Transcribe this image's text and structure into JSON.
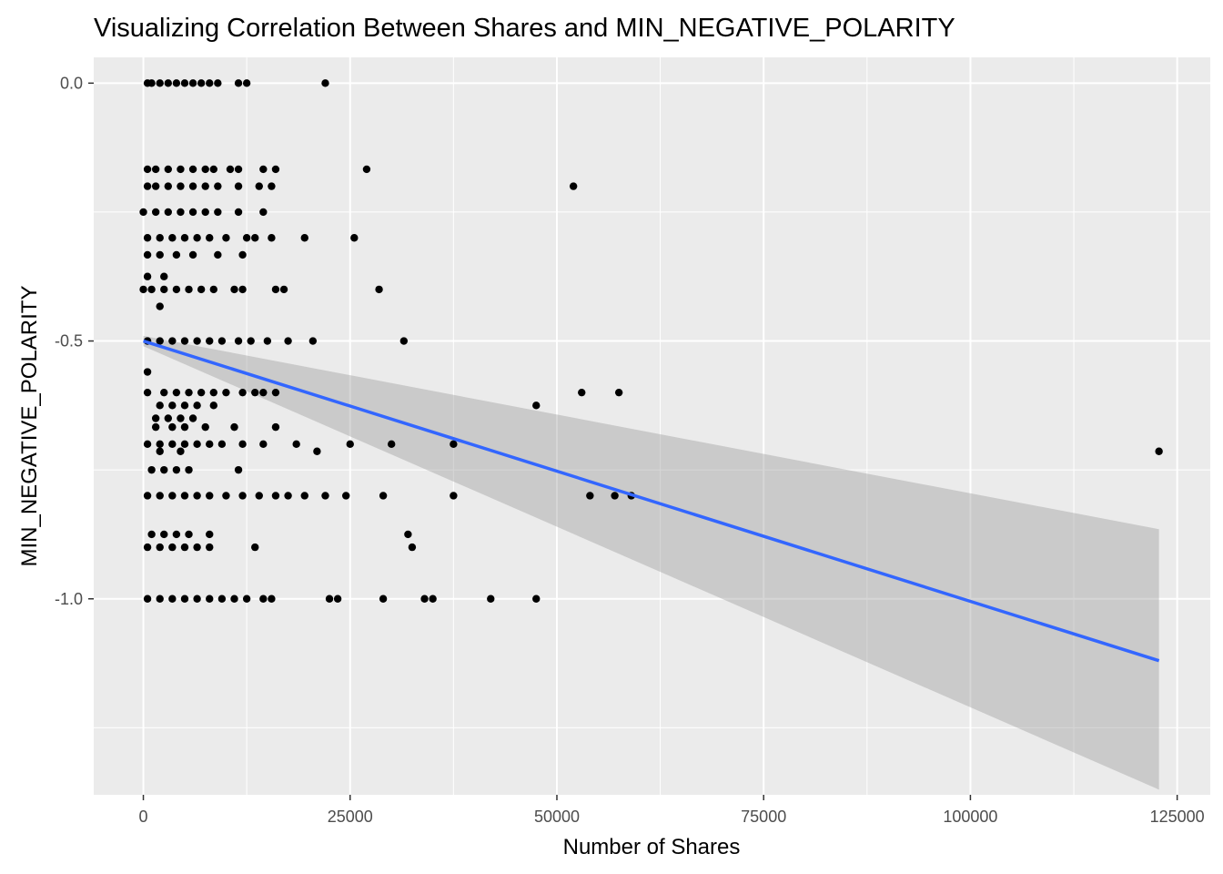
{
  "chart_data": {
    "type": "scatter",
    "title": "Visualizing Correlation Between Shares and MIN_NEGATIVE_POLARITY",
    "xlabel": "Number of Shares",
    "ylabel": "MIN_NEGATIVE_POLARITY",
    "xlim": [
      -6000,
      129000
    ],
    "ylim": [
      -1.38,
      0.05
    ],
    "xticks": [
      0,
      25000,
      50000,
      75000,
      100000,
      125000
    ],
    "xtick_labels": [
      "0",
      "25000",
      "50000",
      "75000",
      "100000",
      "125000"
    ],
    "yticks": [
      0.0,
      -0.5,
      -1.0
    ],
    "ytick_labels": [
      "0.0",
      "-0.5",
      "-1.0"
    ],
    "grid": true,
    "legend": "none",
    "colors": {
      "panel": "#ebebeb",
      "grid_major": "#ffffff",
      "points": "#000000",
      "fit_line": "#3366ff",
      "confidence_band": "#999999"
    },
    "regression": {
      "method": "lm",
      "x": [
        0,
        122800
      ],
      "y": [
        -0.5,
        -1.12
      ],
      "ci_upper": [
        -0.49,
        -0.865
      ],
      "ci_lower": [
        -0.51,
        -1.37
      ]
    },
    "points": [
      {
        "x": 22000,
        "y": 0.0
      },
      {
        "x": 12500,
        "y": 0.0
      },
      {
        "x": 11500,
        "y": 0.0
      },
      {
        "x": 9000,
        "y": 0.0
      },
      {
        "x": 8000,
        "y": 0.0
      },
      {
        "x": 7000,
        "y": 0.0
      },
      {
        "x": 6000,
        "y": 0.0
      },
      {
        "x": 5000,
        "y": 0.0
      },
      {
        "x": 4000,
        "y": 0.0
      },
      {
        "x": 3000,
        "y": 0.0
      },
      {
        "x": 2000,
        "y": 0.0
      },
      {
        "x": 1000,
        "y": 0.0
      },
      {
        "x": 500,
        "y": 0.0
      },
      {
        "x": 27000,
        "y": -0.167
      },
      {
        "x": 16000,
        "y": -0.167
      },
      {
        "x": 14500,
        "y": -0.167
      },
      {
        "x": 11500,
        "y": -0.167
      },
      {
        "x": 10500,
        "y": -0.167
      },
      {
        "x": 8500,
        "y": -0.167
      },
      {
        "x": 7500,
        "y": -0.167
      },
      {
        "x": 6000,
        "y": -0.167
      },
      {
        "x": 4500,
        "y": -0.167
      },
      {
        "x": 3000,
        "y": -0.167
      },
      {
        "x": 1500,
        "y": -0.167
      },
      {
        "x": 500,
        "y": -0.167
      },
      {
        "x": 52000,
        "y": -0.2
      },
      {
        "x": 15500,
        "y": -0.2
      },
      {
        "x": 14000,
        "y": -0.2
      },
      {
        "x": 11500,
        "y": -0.2
      },
      {
        "x": 9000,
        "y": -0.2
      },
      {
        "x": 7500,
        "y": -0.2
      },
      {
        "x": 6000,
        "y": -0.2
      },
      {
        "x": 4500,
        "y": -0.2
      },
      {
        "x": 3000,
        "y": -0.2
      },
      {
        "x": 1500,
        "y": -0.2
      },
      {
        "x": 500,
        "y": -0.2
      },
      {
        "x": 14500,
        "y": -0.25
      },
      {
        "x": 11500,
        "y": -0.25
      },
      {
        "x": 9000,
        "y": -0.25
      },
      {
        "x": 7500,
        "y": -0.25
      },
      {
        "x": 6000,
        "y": -0.25
      },
      {
        "x": 4500,
        "y": -0.25
      },
      {
        "x": 3000,
        "y": -0.25
      },
      {
        "x": 1500,
        "y": -0.25
      },
      {
        "x": 0,
        "y": -0.25
      },
      {
        "x": 25500,
        "y": -0.3
      },
      {
        "x": 19500,
        "y": -0.3
      },
      {
        "x": 15500,
        "y": -0.3
      },
      {
        "x": 13500,
        "y": -0.3
      },
      {
        "x": 12500,
        "y": -0.3
      },
      {
        "x": 10000,
        "y": -0.3
      },
      {
        "x": 8000,
        "y": -0.3
      },
      {
        "x": 6500,
        "y": -0.3
      },
      {
        "x": 5000,
        "y": -0.3
      },
      {
        "x": 3500,
        "y": -0.3
      },
      {
        "x": 2000,
        "y": -0.3
      },
      {
        "x": 500,
        "y": -0.3
      },
      {
        "x": 12000,
        "y": -0.333
      },
      {
        "x": 9000,
        "y": -0.333
      },
      {
        "x": 6000,
        "y": -0.333
      },
      {
        "x": 4000,
        "y": -0.333
      },
      {
        "x": 2000,
        "y": -0.333
      },
      {
        "x": 500,
        "y": -0.333
      },
      {
        "x": 2500,
        "y": -0.375
      },
      {
        "x": 500,
        "y": -0.375
      },
      {
        "x": 28500,
        "y": -0.4
      },
      {
        "x": 17000,
        "y": -0.4
      },
      {
        "x": 16000,
        "y": -0.4
      },
      {
        "x": 12000,
        "y": -0.4
      },
      {
        "x": 11000,
        "y": -0.4
      },
      {
        "x": 8500,
        "y": -0.4
      },
      {
        "x": 7000,
        "y": -0.4
      },
      {
        "x": 5500,
        "y": -0.4
      },
      {
        "x": 4000,
        "y": -0.4
      },
      {
        "x": 2500,
        "y": -0.4
      },
      {
        "x": 1000,
        "y": -0.4
      },
      {
        "x": 0,
        "y": -0.4
      },
      {
        "x": 2000,
        "y": -0.433
      },
      {
        "x": 31500,
        "y": -0.5
      },
      {
        "x": 20500,
        "y": -0.5
      },
      {
        "x": 17500,
        "y": -0.5
      },
      {
        "x": 15000,
        "y": -0.5
      },
      {
        "x": 13000,
        "y": -0.5
      },
      {
        "x": 11500,
        "y": -0.5
      },
      {
        "x": 9500,
        "y": -0.5
      },
      {
        "x": 8000,
        "y": -0.5
      },
      {
        "x": 6500,
        "y": -0.5
      },
      {
        "x": 5000,
        "y": -0.5
      },
      {
        "x": 3500,
        "y": -0.5
      },
      {
        "x": 2000,
        "y": -0.5
      },
      {
        "x": 500,
        "y": -0.5
      },
      {
        "x": 500,
        "y": -0.56
      },
      {
        "x": 57500,
        "y": -0.6
      },
      {
        "x": 53000,
        "y": -0.6
      },
      {
        "x": 16000,
        "y": -0.6
      },
      {
        "x": 14500,
        "y": -0.6
      },
      {
        "x": 13500,
        "y": -0.6
      },
      {
        "x": 12000,
        "y": -0.6
      },
      {
        "x": 10000,
        "y": -0.6
      },
      {
        "x": 8500,
        "y": -0.6
      },
      {
        "x": 7000,
        "y": -0.6
      },
      {
        "x": 5500,
        "y": -0.6
      },
      {
        "x": 4000,
        "y": -0.6
      },
      {
        "x": 2500,
        "y": -0.6
      },
      {
        "x": 500,
        "y": -0.6
      },
      {
        "x": 47500,
        "y": -0.625
      },
      {
        "x": 8500,
        "y": -0.625
      },
      {
        "x": 6500,
        "y": -0.625
      },
      {
        "x": 5000,
        "y": -0.625
      },
      {
        "x": 3500,
        "y": -0.625
      },
      {
        "x": 2000,
        "y": -0.625
      },
      {
        "x": 6000,
        "y": -0.65
      },
      {
        "x": 4500,
        "y": -0.65
      },
      {
        "x": 3000,
        "y": -0.65
      },
      {
        "x": 1500,
        "y": -0.65
      },
      {
        "x": 16000,
        "y": -0.667
      },
      {
        "x": 11000,
        "y": -0.667
      },
      {
        "x": 7500,
        "y": -0.667
      },
      {
        "x": 5000,
        "y": -0.667
      },
      {
        "x": 3500,
        "y": -0.667
      },
      {
        "x": 1500,
        "y": -0.667
      },
      {
        "x": 37500,
        "y": -0.7
      },
      {
        "x": 30000,
        "y": -0.7
      },
      {
        "x": 25000,
        "y": -0.7
      },
      {
        "x": 18500,
        "y": -0.7
      },
      {
        "x": 14500,
        "y": -0.7
      },
      {
        "x": 12000,
        "y": -0.7
      },
      {
        "x": 9500,
        "y": -0.7
      },
      {
        "x": 8000,
        "y": -0.7
      },
      {
        "x": 6500,
        "y": -0.7
      },
      {
        "x": 5000,
        "y": -0.7
      },
      {
        "x": 3500,
        "y": -0.7
      },
      {
        "x": 2000,
        "y": -0.7
      },
      {
        "x": 500,
        "y": -0.7
      },
      {
        "x": 122800,
        "y": -0.714
      },
      {
        "x": 21000,
        "y": -0.714
      },
      {
        "x": 4500,
        "y": -0.714
      },
      {
        "x": 2000,
        "y": -0.714
      },
      {
        "x": 11500,
        "y": -0.75
      },
      {
        "x": 5500,
        "y": -0.75
      },
      {
        "x": 4000,
        "y": -0.75
      },
      {
        "x": 2500,
        "y": -0.75
      },
      {
        "x": 1000,
        "y": -0.75
      },
      {
        "x": 59000,
        "y": -0.8
      },
      {
        "x": 57000,
        "y": -0.8
      },
      {
        "x": 54000,
        "y": -0.8
      },
      {
        "x": 37500,
        "y": -0.8
      },
      {
        "x": 29000,
        "y": -0.8
      },
      {
        "x": 24500,
        "y": -0.8
      },
      {
        "x": 22000,
        "y": -0.8
      },
      {
        "x": 19500,
        "y": -0.8
      },
      {
        "x": 17500,
        "y": -0.8
      },
      {
        "x": 16000,
        "y": -0.8
      },
      {
        "x": 14000,
        "y": -0.8
      },
      {
        "x": 12000,
        "y": -0.8
      },
      {
        "x": 10000,
        "y": -0.8
      },
      {
        "x": 8000,
        "y": -0.8
      },
      {
        "x": 6500,
        "y": -0.8
      },
      {
        "x": 5000,
        "y": -0.8
      },
      {
        "x": 3500,
        "y": -0.8
      },
      {
        "x": 2000,
        "y": -0.8
      },
      {
        "x": 500,
        "y": -0.8
      },
      {
        "x": 32000,
        "y": -0.875
      },
      {
        "x": 8000,
        "y": -0.875
      },
      {
        "x": 5500,
        "y": -0.875
      },
      {
        "x": 4000,
        "y": -0.875
      },
      {
        "x": 2500,
        "y": -0.875
      },
      {
        "x": 1000,
        "y": -0.875
      },
      {
        "x": 32500,
        "y": -0.9
      },
      {
        "x": 13500,
        "y": -0.9
      },
      {
        "x": 8000,
        "y": -0.9
      },
      {
        "x": 6500,
        "y": -0.9
      },
      {
        "x": 5000,
        "y": -0.9
      },
      {
        "x": 3500,
        "y": -0.9
      },
      {
        "x": 2000,
        "y": -0.9
      },
      {
        "x": 500,
        "y": -0.9
      },
      {
        "x": 47500,
        "y": -1.0
      },
      {
        "x": 42000,
        "y": -1.0
      },
      {
        "x": 35000,
        "y": -1.0
      },
      {
        "x": 34000,
        "y": -1.0
      },
      {
        "x": 29000,
        "y": -1.0
      },
      {
        "x": 23500,
        "y": -1.0
      },
      {
        "x": 22500,
        "y": -1.0
      },
      {
        "x": 15500,
        "y": -1.0
      },
      {
        "x": 14500,
        "y": -1.0
      },
      {
        "x": 12500,
        "y": -1.0
      },
      {
        "x": 11000,
        "y": -1.0
      },
      {
        "x": 9500,
        "y": -1.0
      },
      {
        "x": 8000,
        "y": -1.0
      },
      {
        "x": 6500,
        "y": -1.0
      },
      {
        "x": 5000,
        "y": -1.0
      },
      {
        "x": 3500,
        "y": -1.0
      },
      {
        "x": 2000,
        "y": -1.0
      },
      {
        "x": 500,
        "y": -1.0
      }
    ]
  }
}
